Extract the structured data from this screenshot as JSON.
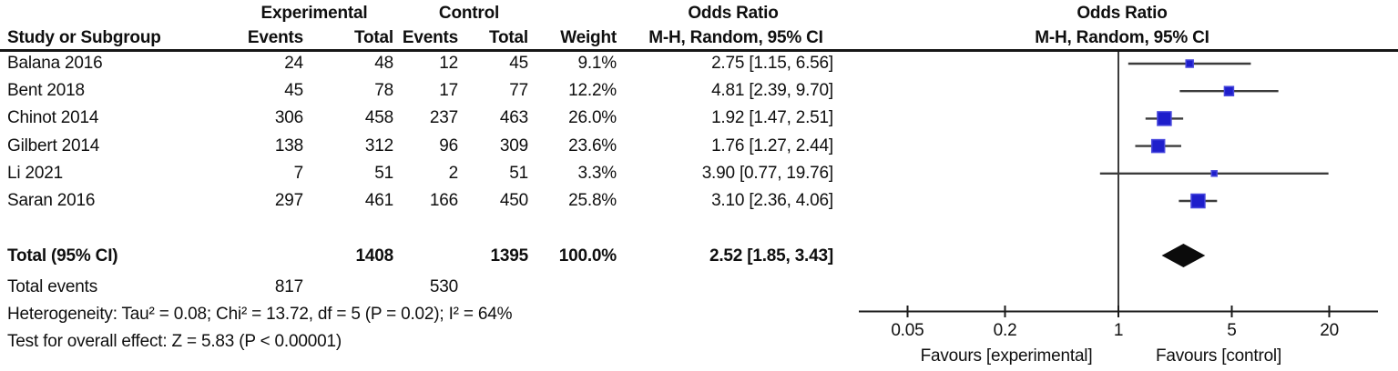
{
  "colors": {
    "marker_blue": "#1e1ecb",
    "marker_border": "#4747dd",
    "diamond_black": "#0b0b0b",
    "line_gray": "#3c3c3c",
    "header_rule": "#161616"
  },
  "header": {
    "group_experimental": "Experimental",
    "group_control": "Control",
    "odds_ratio_text_col": "Odds Ratio",
    "odds_ratio_plot_col": "Odds Ratio",
    "col_study": "Study or Subgroup",
    "col_events_exp": "Events",
    "col_total_exp": "Total",
    "col_events_ctl": "Events",
    "col_total_ctl": "Total",
    "col_weight": "Weight",
    "col_ci_text": "M-H, Random, 95% CI",
    "col_ci_plot": "M-H, Random, 95% CI"
  },
  "chart_data": {
    "type": "forest",
    "x_scale": "log",
    "effect_measure": "Odds Ratio, M-H, Random, 95% CI",
    "axis_ticks": [
      0.05,
      0.2,
      1,
      5,
      20
    ],
    "axis_tick_labels": [
      "0.05",
      "0.2",
      "1",
      "5",
      "20"
    ],
    "favours_left": "Favours [experimental]",
    "favours_right": "Favours [control]",
    "studies": [
      {
        "name": "Balana 2016",
        "events_exp": 24,
        "total_exp": 48,
        "events_ctl": 12,
        "total_ctl": 45,
        "weight": "9.1%",
        "or": 2.75,
        "ci_low": 1.15,
        "ci_high": 6.56,
        "ci_text": "2.75 [1.15, 6.56]",
        "marker_size": 8
      },
      {
        "name": "Bent 2018",
        "events_exp": 45,
        "total_exp": 78,
        "events_ctl": 17,
        "total_ctl": 77,
        "weight": "12.2%",
        "or": 4.81,
        "ci_low": 2.39,
        "ci_high": 9.7,
        "ci_text": "4.81 [2.39, 9.70]",
        "marker_size": 10
      },
      {
        "name": "Chinot 2014",
        "events_exp": 306,
        "total_exp": 458,
        "events_ctl": 237,
        "total_ctl": 463,
        "weight": "26.0%",
        "or": 1.92,
        "ci_low": 1.47,
        "ci_high": 2.51,
        "ci_text": "1.92 [1.47, 2.51]",
        "marker_size": 15
      },
      {
        "name": "Gilbert 2014",
        "events_exp": 138,
        "total_exp": 312,
        "events_ctl": 96,
        "total_ctl": 309,
        "weight": "23.6%",
        "or": 1.76,
        "ci_low": 1.27,
        "ci_high": 2.44,
        "ci_text": "1.76 [1.27, 2.44]",
        "marker_size": 14
      },
      {
        "name": "Li 2021",
        "events_exp": 7,
        "total_exp": 51,
        "events_ctl": 2,
        "total_ctl": 51,
        "weight": "3.3%",
        "or": 3.9,
        "ci_low": 0.77,
        "ci_high": 19.76,
        "ci_text": "3.90 [0.77, 19.76]",
        "marker_size": 6
      },
      {
        "name": "Saran 2016",
        "events_exp": 297,
        "total_exp": 461,
        "events_ctl": 166,
        "total_ctl": 450,
        "weight": "25.8%",
        "or": 3.1,
        "ci_low": 2.36,
        "ci_high": 4.06,
        "ci_text": "3.10 [2.36, 4.06]",
        "marker_size": 15
      }
    ],
    "total": {
      "label": "Total (95% CI)",
      "total_exp": "1408",
      "total_ctl": "1395",
      "weight": "100.0%",
      "or": 2.52,
      "ci_low": 1.85,
      "ci_high": 3.43,
      "ci_text": "2.52 [1.85, 3.43]"
    },
    "total_events": {
      "label": "Total events",
      "exp": "817",
      "ctl": "530"
    },
    "heterogeneity": "Heterogeneity: Tau² = 0.08; Chi² = 13.72, df = 5 (P = 0.02); I² = 64%",
    "overall_effect": "Test for overall effect: Z = 5.83 (P < 0.00001)"
  }
}
